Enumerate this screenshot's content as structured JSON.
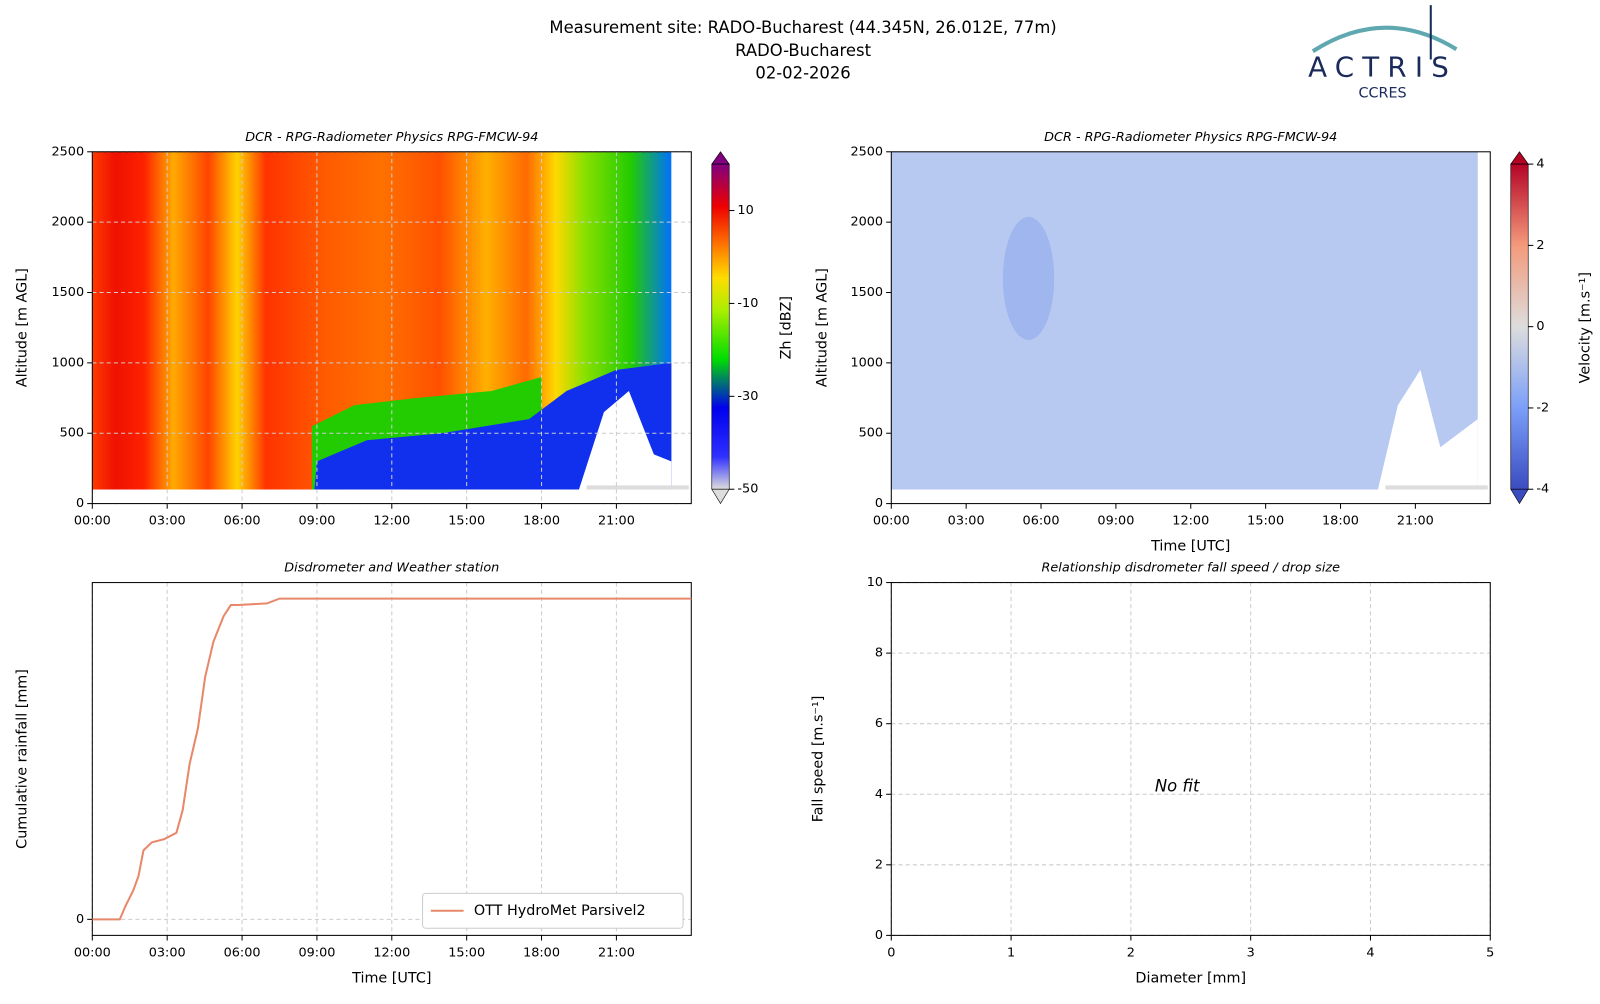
{
  "header": {
    "title": [
      "Measurement site: RADO-Bucharest (44.345N, 26.012E, 77m)",
      "RADO-Bucharest",
      "02-02-2026"
    ],
    "logo": "ACTRIS",
    "logo_sub": "CCRES"
  },
  "chart_data": [
    {
      "type": "heatmap",
      "title": "DCR - RPG-Radiometer Physics RPG-FMCW-94",
      "ylabel": "Altitude [m AGL]",
      "colormap": "rainbow",
      "xlim": [
        0,
        24
      ],
      "xticks": [
        {
          "value": 0,
          "label": "00:00"
        },
        {
          "value": 3,
          "label": "03:00"
        },
        {
          "value": 6,
          "label": "06:00"
        },
        {
          "value": 9,
          "label": "09:00"
        },
        {
          "value": 12,
          "label": "12:00"
        },
        {
          "value": 15,
          "label": "15:00"
        },
        {
          "value": 18,
          "label": "18:00"
        },
        {
          "value": 21,
          "label": "21:00"
        }
      ],
      "ylim": [
        0,
        2500
      ],
      "yticks": [
        0,
        500,
        1000,
        1500,
        2000,
        2500
      ],
      "grid": true,
      "colorbar": {
        "label": "Zh [dBZ]",
        "lim": [
          -50,
          20
        ],
        "ticks": [
          10,
          -10,
          -30,
          -50
        ]
      }
    },
    {
      "type": "heatmap",
      "title": "DCR - RPG-Radiometer Physics RPG-FMCW-94",
      "xlabel": "Time [UTC]",
      "ylabel": "Altitude [m AGL]",
      "colormap": "coolwarm",
      "xlim": [
        0,
        24
      ],
      "xticks": [
        {
          "value": 0,
          "label": "00:00"
        },
        {
          "value": 3,
          "label": "03:00"
        },
        {
          "value": 6,
          "label": "06:00"
        },
        {
          "value": 9,
          "label": "09:00"
        },
        {
          "value": 12,
          "label": "12:00"
        },
        {
          "value": 15,
          "label": "15:00"
        },
        {
          "value": 18,
          "label": "18:00"
        },
        {
          "value": 21,
          "label": "21:00"
        }
      ],
      "ylim": [
        0,
        2500
      ],
      "yticks": [
        0,
        500,
        1000,
        1500,
        2000,
        2500
      ],
      "grid": false,
      "colorbar": {
        "label": "Velocity [m.s⁻¹]",
        "lim": [
          -4,
          4
        ],
        "ticks": [
          4,
          2,
          0,
          -2,
          -4
        ]
      }
    },
    {
      "type": "line",
      "title": "Disdrometer and Weather station",
      "xlabel": "Time [UTC]",
      "ylabel": "Cumulative rainfall [mm]",
      "xlim": [
        0,
        24
      ],
      "xticks": [
        {
          "value": 0,
          "label": "00:00"
        },
        {
          "value": 3,
          "label": "03:00"
        },
        {
          "value": 6,
          "label": "06:00"
        },
        {
          "value": 9,
          "label": "09:00"
        },
        {
          "value": 12,
          "label": "12:00"
        },
        {
          "value": 15,
          "label": "15:00"
        },
        {
          "value": 18,
          "label": "18:00"
        },
        {
          "value": 21,
          "label": "21:00"
        }
      ],
      "ylim": [
        -1,
        21
      ],
      "yticks": [
        0
      ],
      "grid": true,
      "legend": "lower right",
      "x": [
        0,
        1.1,
        1.32,
        1.64,
        1.85,
        2.05,
        2.38,
        2.88,
        3.37,
        3.62,
        3.9,
        4.23,
        4.52,
        4.85,
        5.26,
        5.55,
        5.84,
        7.0,
        7.5,
        24
      ],
      "series": [
        {
          "name": "OTT HydroMet Parsivel2",
          "color": "#e8886a",
          "values": [
            0,
            0,
            0.8,
            1.8,
            2.7,
            4.3,
            4.8,
            5.0,
            5.4,
            6.8,
            9.7,
            11.9,
            15.1,
            17.3,
            18.9,
            19.6,
            19.6,
            19.7,
            20.0,
            20.0
          ]
        }
      ]
    },
    {
      "type": "scatter",
      "title": "Relationship disdrometer fall speed / drop size",
      "xlabel": "Diameter [mm]",
      "ylabel": "Fall speed [m.s⁻¹]",
      "xlim": [
        0,
        5
      ],
      "xticks": [
        0,
        1,
        2,
        3,
        4,
        5
      ],
      "ylim": [
        0,
        10
      ],
      "yticks": [
        0,
        2,
        4,
        6,
        8,
        10
      ],
      "grid": true,
      "annotation": "No fit"
    }
  ]
}
